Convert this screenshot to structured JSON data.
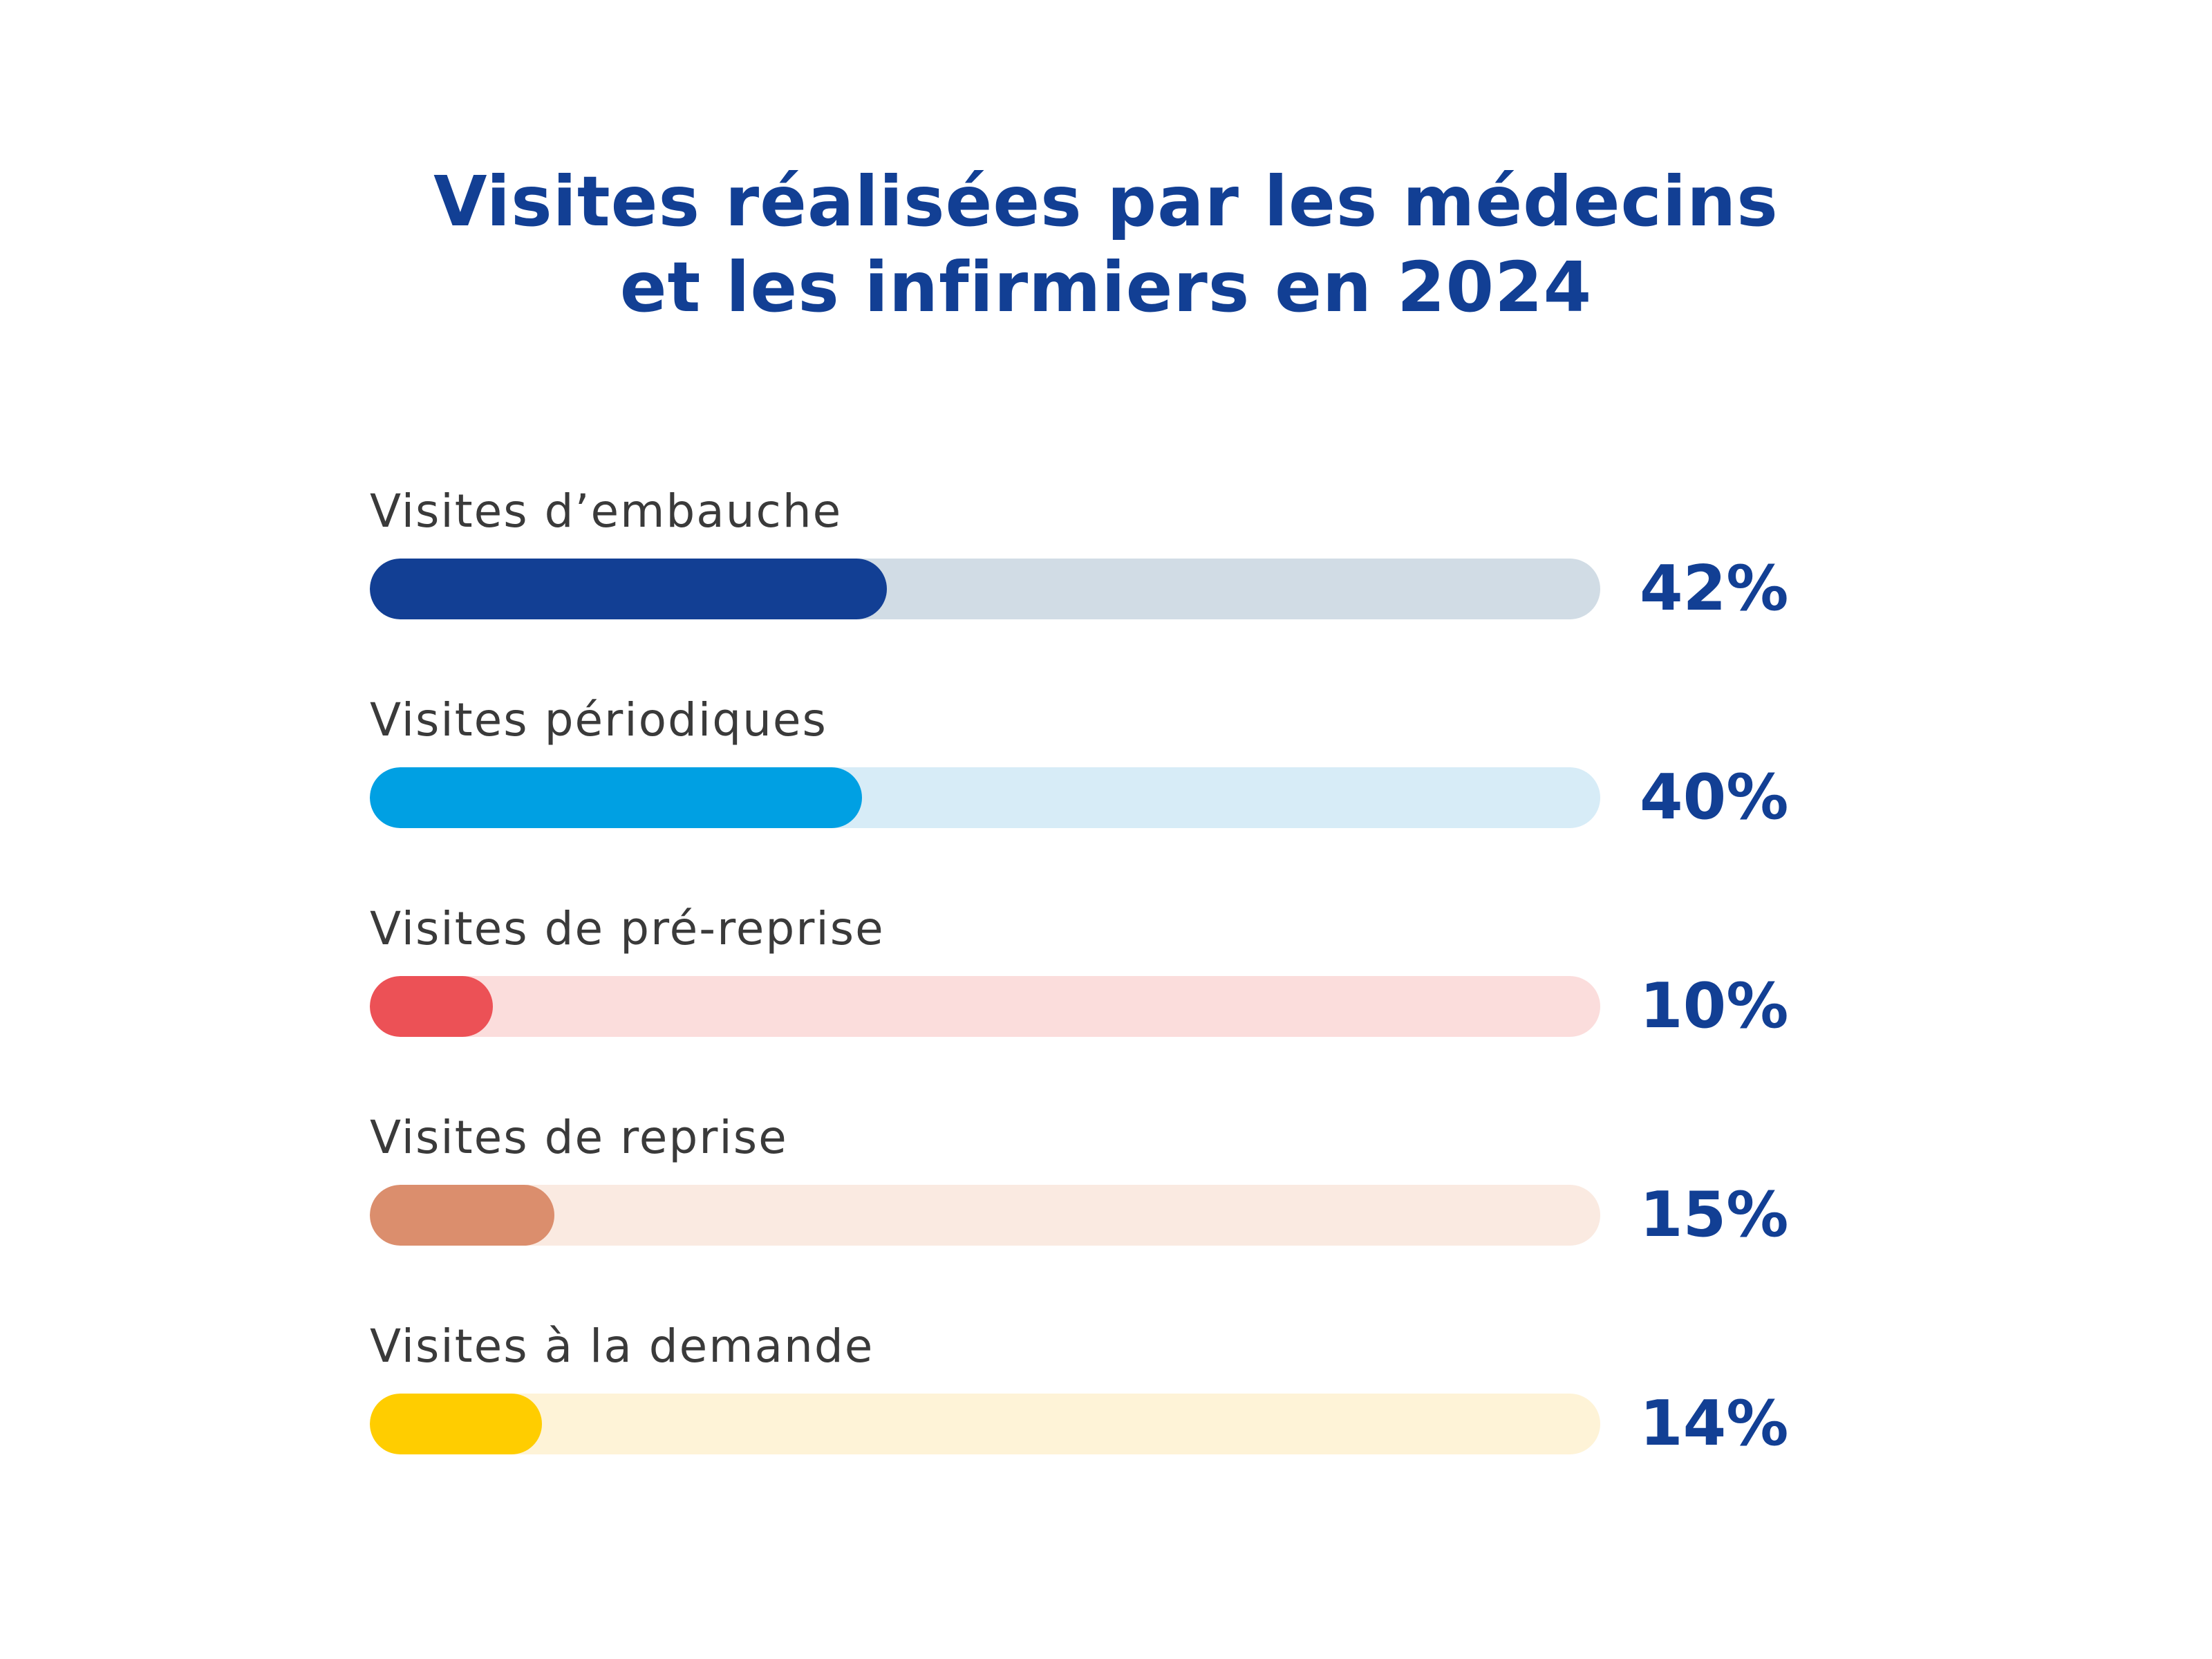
{
  "chart_data": {
    "type": "bar",
    "orientation": "horizontal",
    "title": "Visites réalisées par les médecins et les infirmiers en 2024",
    "title_lines": [
      "Visites réalisées par les médecins",
      "et les infirmiers en 2024"
    ],
    "categories": [
      "Visites d’embauche",
      "Visites périodiques",
      "Visites de pré-reprise",
      "Visites de reprise",
      "Visites à la demande"
    ],
    "values": [
      42,
      40,
      10,
      15,
      14
    ],
    "value_labels": [
      "42%",
      "40%",
      "10%",
      "15%",
      "14%"
    ],
    "unit": "%",
    "xlim": [
      0,
      100
    ],
    "grid": false,
    "legend": "none",
    "colors": {
      "title": "#123f94",
      "value_text": "#123f94",
      "label_text": "#3a3a3a",
      "bars": [
        {
          "fill": "#123f94",
          "track": "#d1dce5"
        },
        {
          "fill": "#00a0e3",
          "track": "#d7ecf7"
        },
        {
          "fill": "#ec5156",
          "track": "#fbdddc"
        },
        {
          "fill": "#db8e6d",
          "track": "#faeae1"
        },
        {
          "fill": "#ffcd00",
          "track": "#fef3d7"
        }
      ]
    }
  }
}
